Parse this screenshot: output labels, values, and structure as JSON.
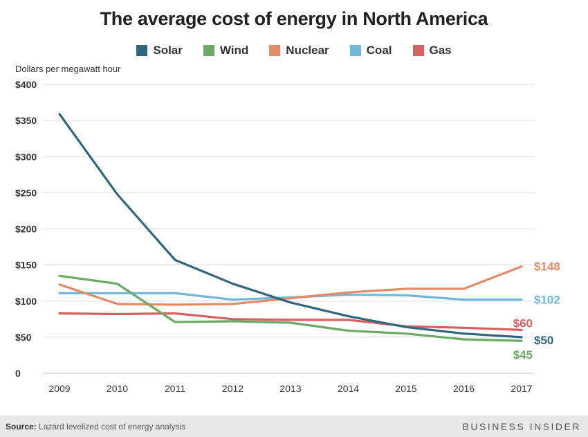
{
  "chart_data": {
    "type": "line",
    "title": "The average cost of energy in North America",
    "ylabel": "Dollars per megawatt hour",
    "xlabel": "",
    "x": [
      "2009",
      "2010",
      "2011",
      "2012",
      "2013",
      "2014",
      "2015",
      "2016",
      "2017"
    ],
    "ylim": [
      0,
      400
    ],
    "yticks": [
      0,
      50,
      100,
      150,
      200,
      250,
      300,
      350,
      400
    ],
    "ytick_labels": [
      "0",
      "$50",
      "$100",
      "$150",
      "$200",
      "$250",
      "$300",
      "$350",
      "$400"
    ],
    "grid": true,
    "legend": "top",
    "series": [
      {
        "name": "Solar",
        "color": "#2f6680",
        "values": [
          359,
          248,
          157,
          124,
          98,
          79,
          64,
          55,
          50
        ],
        "end_label": "$50"
      },
      {
        "name": "Wind",
        "color": "#6aaa64",
        "values": [
          135,
          124,
          71,
          72,
          70,
          59,
          55,
          47,
          45
        ],
        "end_label": "$45"
      },
      {
        "name": "Nuclear",
        "color": "#e58a66",
        "values": [
          123,
          96,
          95,
          96,
          104,
          112,
          117,
          117,
          148
        ],
        "end_label": "$148"
      },
      {
        "name": "Coal",
        "color": "#6fb8dc",
        "values": [
          111,
          111,
          111,
          102,
          105,
          109,
          108,
          102,
          102
        ],
        "end_label": "$102"
      },
      {
        "name": "Gas",
        "color": "#d65f5f",
        "values": [
          83,
          82,
          83,
          75,
          74,
          74,
          65,
          63,
          60
        ],
        "end_label": "$60"
      }
    ]
  },
  "footer": {
    "source_label": "Source:",
    "source_text": " Lazard levelized cost of energy analysis",
    "brand": "BUSINESS INSIDER"
  }
}
